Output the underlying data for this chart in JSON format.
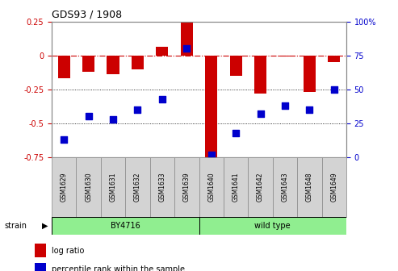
{
  "title": "GDS93 / 1908",
  "samples": [
    "GSM1629",
    "GSM1630",
    "GSM1631",
    "GSM1632",
    "GSM1633",
    "GSM1639",
    "GSM1640",
    "GSM1641",
    "GSM1642",
    "GSM1643",
    "GSM1648",
    "GSM1649"
  ],
  "log_ratio": [
    -0.17,
    -0.12,
    -0.14,
    -0.1,
    0.065,
    0.255,
    -0.77,
    -0.15,
    -0.28,
    -0.005,
    -0.27,
    -0.05
  ],
  "percentile_rank": [
    13,
    30,
    28,
    35,
    43,
    80,
    2,
    18,
    32,
    38,
    35,
    50
  ],
  "groups": [
    {
      "label": "BY4716",
      "start": 0,
      "end": 5
    },
    {
      "label": "wild type",
      "start": 6,
      "end": 11
    }
  ],
  "group_color": "#90EE90",
  "bar_color": "#CC0000",
  "dot_color": "#0000CC",
  "ylim_left": [
    -0.75,
    0.25
  ],
  "ylim_right": [
    0,
    100
  ],
  "left_ticks": [
    0.25,
    0,
    -0.25,
    -0.5,
    -0.75
  ],
  "right_ticks": [
    100,
    75,
    50,
    25,
    0
  ],
  "strain_label": "strain",
  "legend_log": "log ratio",
  "legend_pct": "percentile rank within the sample",
  "bar_width": 0.5,
  "dot_size": 30,
  "sample_box_color": "#D3D3D3",
  "sample_box_edgecolor": "#888888"
}
